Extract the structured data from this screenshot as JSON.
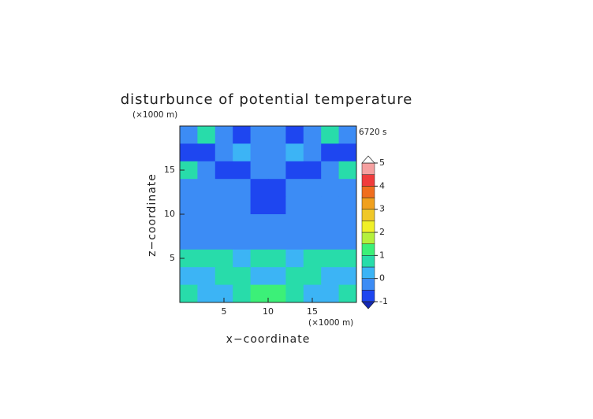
{
  "chart_data": {
    "type": "contour",
    "title": "disturbunce of potential temperature",
    "x_label": "x−coordinate",
    "y_label": "z−coordinate",
    "x_unit": "(×1000 m)",
    "y_unit": "(×1000 m)",
    "annotation": "6720 s",
    "x": [
      1,
      3,
      5,
      7,
      9,
      11,
      13,
      15,
      17,
      19
    ],
    "y": [
      19,
      17,
      15,
      13,
      11,
      9,
      7,
      5,
      3,
      1
    ],
    "z": [
      [
        -0.3,
        0.5,
        -0.2,
        -0.6,
        -0.2,
        -0.2,
        -0.6,
        -0.2,
        0.5,
        -0.3
      ],
      [
        -0.7,
        -0.6,
        -0.2,
        0.3,
        -0.2,
        -0.2,
        0.3,
        -0.2,
        -0.6,
        -0.7
      ],
      [
        0.5,
        -0.2,
        -0.6,
        -0.7,
        -0.3,
        -0.3,
        -0.7,
        -0.6,
        -0.2,
        0.5
      ],
      [
        -0.2,
        -0.2,
        -0.2,
        -0.3,
        -0.7,
        -0.7,
        -0.3,
        -0.2,
        -0.2,
        -0.2
      ],
      [
        -0.3,
        -0.3,
        -0.3,
        -0.3,
        -0.6,
        -0.6,
        -0.3,
        -0.3,
        -0.3,
        -0.3
      ],
      [
        -0.4,
        -0.4,
        -0.4,
        -0.4,
        -0.4,
        -0.4,
        -0.4,
        -0.4,
        -0.4,
        -0.4
      ],
      [
        -0.3,
        -0.3,
        -0.3,
        -0.3,
        -0.3,
        -0.3,
        -0.3,
        -0.3,
        -0.3,
        -0.3
      ],
      [
        0.6,
        0.7,
        0.6,
        0.3,
        0.7,
        0.7,
        0.3,
        0.6,
        0.7,
        0.6
      ],
      [
        0.3,
        0.2,
        0.6,
        0.7,
        0.3,
        0.3,
        0.7,
        0.6,
        0.2,
        0.3
      ],
      [
        0.6,
        0.2,
        0.3,
        0.6,
        1.2,
        1.2,
        0.6,
        0.3,
        0.2,
        0.6
      ]
    ],
    "xlim": [
      0,
      20
    ],
    "ylim": [
      0,
      20
    ],
    "xticks": [
      5,
      10,
      15
    ],
    "yticks": [
      5,
      10,
      15
    ],
    "levels": [
      -1,
      -0.5,
      0,
      0.5,
      1,
      1.5,
      2,
      2.5,
      3,
      3.5,
      4,
      4.5,
      5
    ],
    "colors": [
      "#1e46f0",
      "#3c8cf5",
      "#3cb4f5",
      "#28dcaa",
      "#3cf078",
      "#b4f03c",
      "#f0f028",
      "#f0c828",
      "#f0a01e",
      "#f06e1e",
      "#f03c3c",
      "#f5a0a0"
    ],
    "extend_colors": [
      "#1428b4",
      "#ffffff"
    ],
    "colorbar_ticks": [
      -1,
      0,
      1,
      2,
      3,
      4,
      5
    ]
  }
}
